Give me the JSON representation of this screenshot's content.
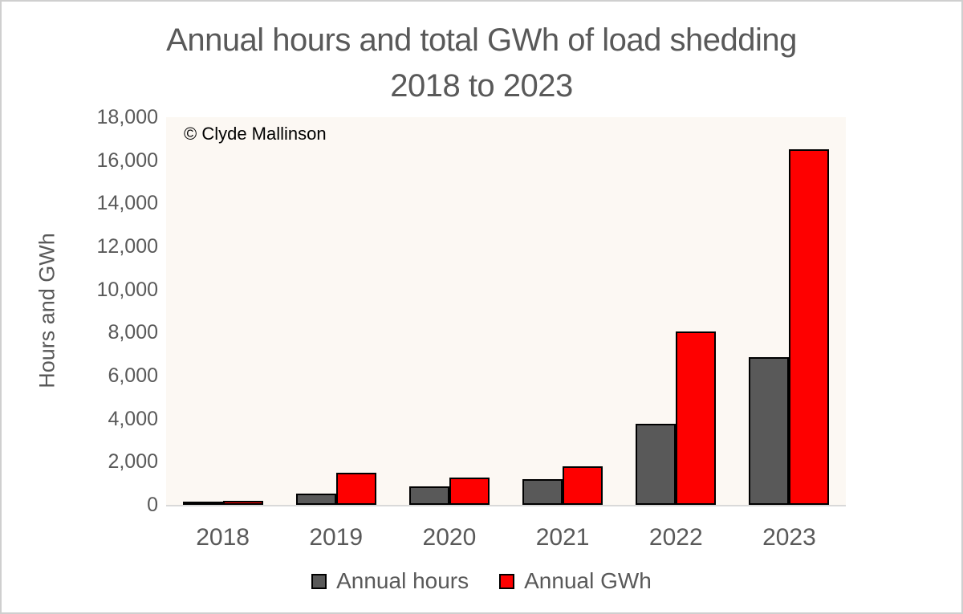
{
  "title": {
    "line1": "Annual hours and total GWh of load shedding",
    "line2": "2018 to 2023"
  },
  "plot": {
    "copyright": "© Clyde Mallinson",
    "background_color": "#FCF8F3",
    "axis_line_color": "#D9D9D9"
  },
  "y_axis": {
    "title": "Hours and GWh",
    "ticks": [
      "0",
      "2,000",
      "4,000",
      "6,000",
      "8,000",
      "10,000",
      "12,000",
      "14,000",
      "16,000",
      "18,000"
    ]
  },
  "chart_data": {
    "type": "bar",
    "title": "Annual hours and total GWh of load shedding 2018 to 2023",
    "categories": [
      "2018",
      "2019",
      "2020",
      "2021",
      "2022",
      "2023"
    ],
    "series": [
      {
        "name": "Annual hours",
        "color": "#595959",
        "values": [
          150,
          530,
          850,
          1175,
          3775,
          6850
        ]
      },
      {
        "name": "Annual GWh",
        "color": "#FE0000",
        "values": [
          200,
          1500,
          1250,
          1775,
          8050,
          16500
        ]
      }
    ],
    "xlabel": "",
    "ylabel": "Hours and GWh",
    "ylim": [
      0,
      18000
    ],
    "grid": false,
    "legend_position": "bottom",
    "bar_border_color": "#000000",
    "text_color": "#595959"
  }
}
